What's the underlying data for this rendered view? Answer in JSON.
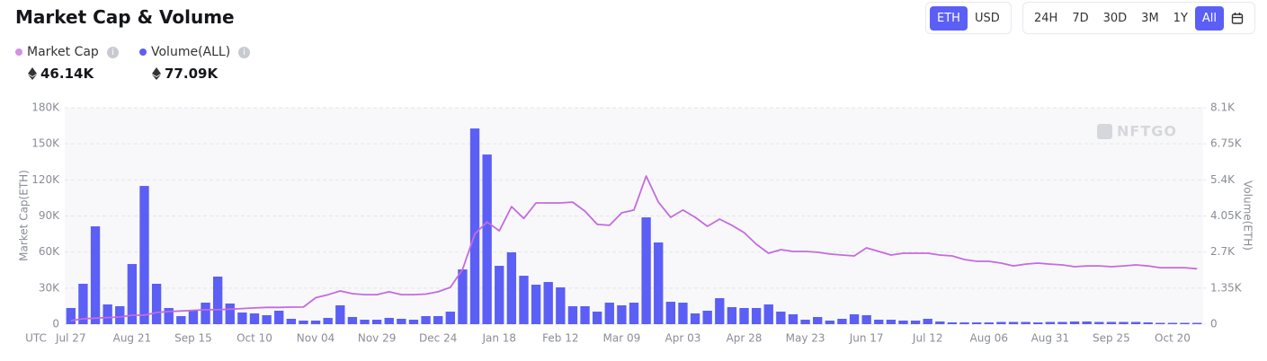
{
  "header": {
    "currency_buttons": [
      "ETH",
      "USD"
    ],
    "active_currency": "ETH",
    "range_buttons": [
      "24H",
      "7D",
      "30D",
      "3M",
      "1Y",
      "All"
    ],
    "active_range": "All"
  },
  "chart_data": {
    "type": "bar",
    "title": "Market Cap & Volume",
    "x_label": "UTC",
    "y_label": "Market Cap(ETH)",
    "y2_label": "Volume(ETH)",
    "watermark": "NFTGO",
    "grid": true,
    "categories": [
      "Jul 27",
      null,
      null,
      null,
      null,
      "Aug 21",
      null,
      null,
      null,
      null,
      "Sep 15",
      null,
      null,
      null,
      null,
      "Oct 10",
      null,
      null,
      null,
      null,
      "Nov 04",
      null,
      null,
      null,
      null,
      "Nov 29",
      null,
      null,
      null,
      null,
      "Dec 24",
      null,
      null,
      null,
      null,
      "Jan 18",
      null,
      null,
      null,
      null,
      "Feb 12",
      null,
      null,
      null,
      null,
      "Mar 09",
      null,
      null,
      null,
      null,
      "Apr 03",
      null,
      null,
      null,
      null,
      "Apr 28",
      null,
      null,
      null,
      null,
      "May 23",
      null,
      null,
      null,
      null,
      "Jun 17",
      null,
      null,
      null,
      null,
      "Jul 12",
      null,
      null,
      null,
      null,
      "Aug 06",
      null,
      null,
      null,
      null,
      "Aug 31",
      null,
      null,
      null,
      null,
      "Sep 25",
      null,
      null,
      null,
      null,
      "Oct 20",
      null,
      null
    ],
    "series": [
      {
        "name": "Market Cap",
        "type": "line",
        "axis": "y",
        "color": "#c46be0",
        "legend_color": "#d48ee8",
        "current_label": "46.14K",
        "values": [
          3000,
          4500,
          5000,
          5500,
          6000,
          7500,
          7500,
          9700,
          10500,
          11000,
          11500,
          12000,
          12000,
          12500,
          13000,
          13500,
          14000,
          14000,
          14200,
          14300,
          22000,
          24500,
          27600,
          25400,
          24600,
          24600,
          27000,
          24600,
          24600,
          25000,
          27000,
          30600,
          45500,
          75000,
          85000,
          77700,
          97800,
          88000,
          100800,
          100800,
          100800,
          101500,
          94000,
          83000,
          82200,
          92600,
          94900,
          123200,
          101500,
          88900,
          94900,
          88900,
          81400,
          87400,
          82200,
          76200,
          66500,
          59000,
          62000,
          60500,
          60500,
          59800,
          58300,
          57500,
          56800,
          63500,
          60500,
          57500,
          59000,
          59000,
          59000,
          57500,
          56800,
          53800,
          52300,
          52300,
          50800,
          48500,
          50000,
          50800,
          50000,
          49300,
          47800,
          48500,
          48500,
          47800,
          48500,
          49300,
          48500,
          47000,
          47000,
          47000,
          46100
        ]
      },
      {
        "name": "Volume(ALL)",
        "type": "bar",
        "axis": "y2",
        "color": "#5b5ff5",
        "legend_color": "#5b5ff5",
        "current_label": "77.09K",
        "values": [
          605,
          1512,
          3662,
          739,
          672,
          2251,
          5174,
          1512,
          605,
          302,
          504,
          806,
          1781,
          773,
          437,
          403,
          336,
          504,
          202,
          134,
          134,
          235,
          706,
          269,
          168,
          168,
          235,
          202,
          168,
          302,
          302,
          470,
          2050,
          7325,
          6350,
          2184,
          2688,
          1814,
          1478,
          1579,
          1378,
          672,
          672,
          470,
          806,
          706,
          806,
          3998,
          3058,
          840,
          806,
          403,
          504,
          974,
          638,
          605,
          605,
          739,
          470,
          370,
          168,
          269,
          134,
          202,
          370,
          336,
          168,
          168,
          134,
          134,
          202,
          101,
          67,
          67,
          67,
          67,
          84,
          84,
          84,
          67,
          84,
          84,
          101,
          101,
          84,
          84,
          84,
          84,
          67,
          50,
          50,
          50,
          50
        ]
      }
    ],
    "ylim": [
      0,
      180000
    ],
    "yticks": [
      0,
      {
        "value": 30000,
        "label": "30K"
      },
      {
        "value": 60000,
        "label": "60K"
      },
      {
        "value": 90000,
        "label": "90K"
      },
      {
        "value": 120000,
        "label": "120K"
      },
      {
        "value": 150000,
        "label": "150K"
      },
      {
        "value": 180000,
        "label": "180K"
      }
    ],
    "y2lim": [
      0,
      8100
    ],
    "y2ticks": [
      0,
      {
        "value": 1350,
        "label": "1.35K"
      },
      {
        "value": 2700,
        "label": "2.7K"
      },
      {
        "value": 4050,
        "label": "4.05K"
      },
      {
        "value": 5400,
        "label": "5.4K"
      },
      {
        "value": 6750,
        "label": "6.75K"
      },
      {
        "value": 8100,
        "label": "8.1K"
      }
    ]
  }
}
